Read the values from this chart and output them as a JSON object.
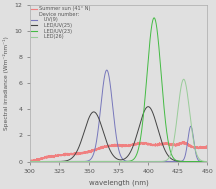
{
  "xlabel": "wavelength (nm)",
  "ylabel": "Spectral irradiance (Wm⁻²nm⁻¹)",
  "xlim": [
    300,
    450
  ],
  "ylim": [
    0,
    12
  ],
  "xticks": [
    300,
    325,
    350,
    375,
    400,
    425,
    450
  ],
  "yticks": [
    0,
    2,
    4,
    6,
    8,
    10,
    12
  ],
  "legend": {
    "summer_sun": "Summer sun (41° N)",
    "uv9": "UV(9)",
    "leduv25": "LED/UV(25)",
    "leduv23": "LED/UV(23)",
    "led26": "LED(26)",
    "device_label": "Device number:"
  },
  "colors": {
    "summer_sun": "#f08080",
    "uv9": "#7777bb",
    "leduv25": "#444444",
    "leduv23": "#44bb44",
    "led26": "#99cc99",
    "bg": "#e8e8e8",
    "axes_text": "#555555",
    "spine": "#aaaaaa"
  },
  "bg_color": "#e0e0e0"
}
